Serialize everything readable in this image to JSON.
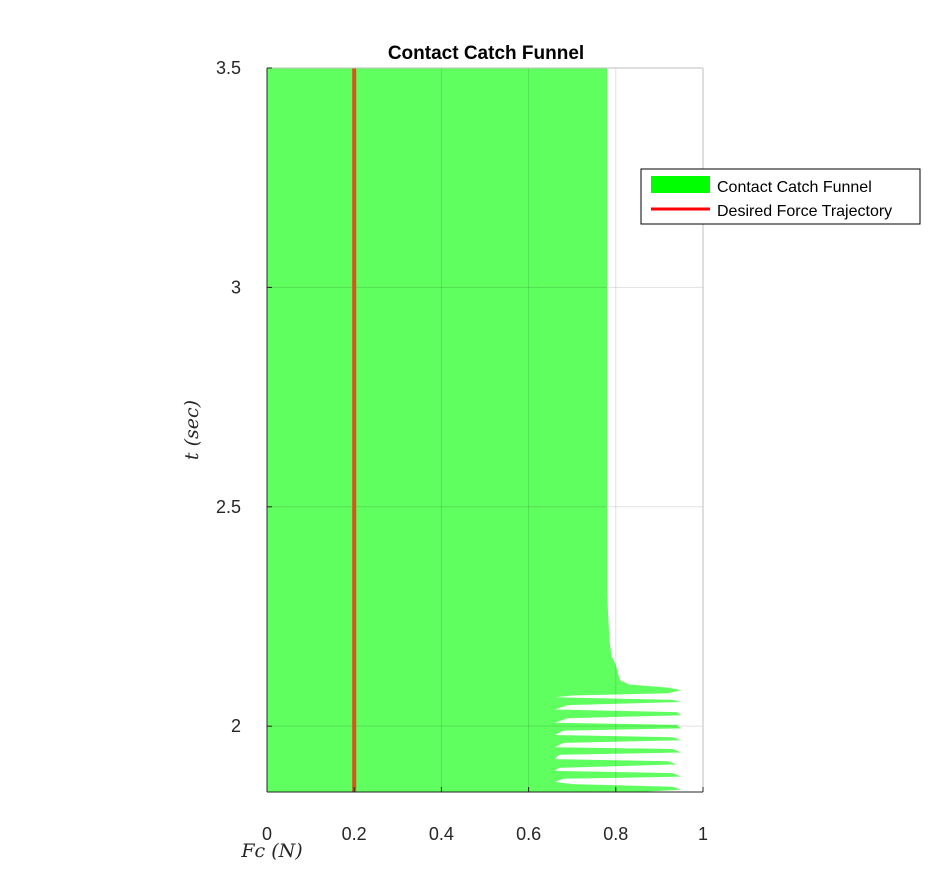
{
  "chart_data": {
    "type": "area",
    "title": "Contact Catch Funnel",
    "xlabel": "Fc (N)",
    "ylabel": "t (sec)",
    "xlim": [
      0,
      1
    ],
    "ylim": [
      1.85,
      3.5
    ],
    "xticks": [
      "0",
      "0.2",
      "0.4",
      "0.6",
      "0.8",
      "1"
    ],
    "yticks": [
      "2",
      "2.5",
      "3",
      "3.5"
    ],
    "grid": true,
    "legend_position": "top-right outside",
    "series": [
      {
        "name": "Contact Catch Funnel",
        "kind": "funnel",
        "color": "#5fff5f",
        "legend_color": "#00ff00",
        "x_left": 0,
        "boundary": [
          [
            0.85,
            1.85
          ],
          [
            0.95,
            1.855
          ],
          [
            0.93,
            1.862
          ],
          [
            0.7,
            1.868
          ],
          [
            0.66,
            1.873
          ],
          [
            0.68,
            1.88
          ],
          [
            0.95,
            1.885
          ],
          [
            0.93,
            1.893
          ],
          [
            0.66,
            1.898
          ],
          [
            0.67,
            1.905
          ],
          [
            0.94,
            1.913
          ],
          [
            0.92,
            1.92
          ],
          [
            0.66,
            1.925
          ],
          [
            0.67,
            1.935
          ],
          [
            0.95,
            1.94
          ],
          [
            0.93,
            1.948
          ],
          [
            0.66,
            1.952
          ],
          [
            0.68,
            1.962
          ],
          [
            0.95,
            1.968
          ],
          [
            0.93,
            1.975
          ],
          [
            0.66,
            1.98
          ],
          [
            0.68,
            1.99
          ],
          [
            0.95,
            1.995
          ],
          [
            0.94,
            2.003
          ],
          [
            0.66,
            2.008
          ],
          [
            0.69,
            2.018
          ],
          [
            0.95,
            2.025
          ],
          [
            0.94,
            2.032
          ],
          [
            0.66,
            2.038
          ],
          [
            0.69,
            2.048
          ],
          [
            0.95,
            2.055
          ],
          [
            0.93,
            2.06
          ],
          [
            0.66,
            2.066
          ],
          [
            0.7,
            2.07
          ],
          [
            0.92,
            2.075
          ],
          [
            0.95,
            2.082
          ],
          [
            0.92,
            2.088
          ],
          [
            0.83,
            2.095
          ],
          [
            0.81,
            2.105
          ],
          [
            0.805,
            2.12
          ],
          [
            0.8,
            2.14
          ],
          [
            0.79,
            2.16
          ],
          [
            0.785,
            2.2
          ],
          [
            0.78,
            2.3
          ],
          [
            0.78,
            3.5
          ]
        ]
      },
      {
        "name": "Desired Force Trajectory",
        "kind": "line",
        "color": "#d9541a",
        "legend_color": "#ff0000",
        "x": [
          0.2,
          0.2
        ],
        "y": [
          1.85,
          3.5
        ]
      }
    ]
  }
}
